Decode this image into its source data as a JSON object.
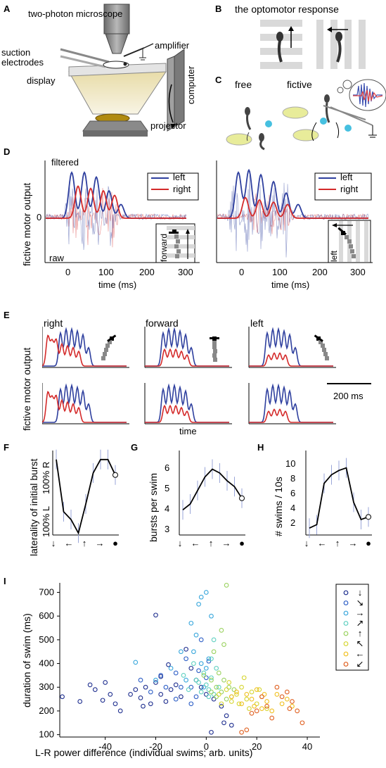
{
  "panels": {
    "A": {
      "letter": "A",
      "labels": {
        "microscope": "two-photon microscope",
        "electrodes": "suction electrodes",
        "amplifier": "amplifier",
        "display": "display",
        "computer": "computer",
        "projector": "projector"
      }
    },
    "B": {
      "letter": "B",
      "title": "the optomotor response"
    },
    "C": {
      "letter": "C",
      "free": "free",
      "fictive": "fictive"
    },
    "D": {
      "letter": "D",
      "ylabel": "fictive motor output",
      "xlabel": "time (ms)",
      "zero": "0",
      "filtered": "filtered",
      "raw": "raw",
      "legend": [
        "left",
        "right"
      ],
      "insets": [
        "forward",
        "left"
      ],
      "xticks": [
        "0",
        "100",
        "200",
        "300"
      ]
    },
    "E": {
      "letter": "E",
      "ylabel": "fictive motor output",
      "xlabel": "time",
      "columns": [
        "right",
        "forward",
        "left"
      ],
      "scalebar": "200 ms"
    },
    "F": {
      "letter": "F",
      "ylabel": "laterality of initial burst",
      "ytick_top": "100% R",
      "ytick_bottom": "100% L"
    },
    "G": {
      "letter": "G",
      "ylabel": "bursts per swim",
      "yticks": [
        "3",
        "4",
        "5",
        "6"
      ]
    },
    "H": {
      "letter": "H",
      "ylabel": "# swims / 10s",
      "yticks": [
        "2",
        "4",
        "6",
        "8",
        "10"
      ]
    },
    "I": {
      "letter": "I",
      "ylabel": "duration of swim (ms)",
      "xlabel": "L-R power difference (individual swims; arb. units)",
      "yticks": [
        "100",
        "200",
        "300",
        "400",
        "500",
        "600",
        "700"
      ],
      "xticks": [
        "-40",
        "-20",
        "0",
        "20",
        "40"
      ],
      "legend_arrows": [
        "↓",
        "↘",
        "→",
        "↗",
        "↑",
        "↖",
        "←",
        "↙"
      ]
    }
  },
  "chart_data": [
    {
      "type": "line",
      "title": "",
      "xlabel": "",
      "ylabel": "laterality of initial burst",
      "categories": [
        "↓",
        "←",
        "↑",
        "→",
        "●"
      ],
      "x": [
        0,
        1,
        2,
        3,
        4,
        5,
        6,
        7,
        8
      ],
      "values": [
        0.95,
        -0.4,
        -0.6,
        -0.95,
        -0.2,
        0.6,
        0.95,
        0.95,
        0.55
      ],
      "ylim": [
        -1,
        1
      ]
    },
    {
      "type": "line",
      "title": "",
      "xlabel": "",
      "ylabel": "bursts per swim",
      "categories": [
        "↓",
        "←",
        "↑",
        "→",
        "●"
      ],
      "x": [
        0,
        1,
        2,
        3,
        4,
        5,
        6,
        7,
        8
      ],
      "values": [
        4.3,
        4.6,
        5.3,
        6.0,
        6.4,
        6.2,
        5.8,
        5.5,
        4.9
      ],
      "ylim": [
        3,
        7
      ]
    },
    {
      "type": "line",
      "title": "",
      "xlabel": "",
      "ylabel": "# swims / 10s",
      "categories": [
        "↓",
        "←",
        "↑",
        "→",
        "●"
      ],
      "x": [
        0,
        1,
        2,
        3,
        4,
        5,
        6,
        7,
        8
      ],
      "values": [
        2.8,
        3.2,
        8.0,
        9.0,
        9.5,
        9.8,
        5.8,
        3.8,
        4.1
      ],
      "ylim": [
        2,
        11
      ]
    },
    {
      "type": "scatter",
      "title": "",
      "xlabel": "L-R power difference (individual swims; arb. units)",
      "ylabel": "duration of swim (ms)",
      "xlim": [
        -58,
        45
      ],
      "ylim": [
        90,
        740
      ],
      "legend_position": "top-right",
      "series": [
        {
          "color": "#1f2f8f",
          "points": [
            [
              -57,
              260
            ],
            [
              -50,
              240
            ],
            [
              -46,
              310
            ],
            [
              -44,
              290
            ],
            [
              -41,
              245
            ],
            [
              -40,
              320
            ],
            [
              -38,
              270
            ],
            [
              -36,
              230
            ],
            [
              -34,
              200
            ],
            [
              -30,
              270
            ],
            [
              -28,
              290
            ],
            [
              -26,
              255
            ],
            [
              -24,
              300
            ],
            [
              -22,
              230
            ],
            [
              -20,
              320
            ],
            [
              -18,
              270
            ],
            [
              -16,
              240
            ],
            [
              -14,
              290
            ],
            [
              -12,
              310
            ],
            [
              -10,
              260
            ],
            [
              -20,
              604
            ],
            [
              -8,
              460
            ],
            [
              -6,
              380
            ],
            [
              -4,
              330
            ],
            [
              -2,
              300
            ],
            [
              0,
              270
            ],
            [
              3,
              250
            ],
            [
              6,
              220
            ],
            [
              8,
              180
            ],
            [
              10,
              140
            ],
            [
              2,
              110
            ],
            [
              7,
              150
            ],
            [
              -15,
              395
            ],
            [
              -18,
              345
            ],
            [
              -25,
              220
            ]
          ]
        },
        {
          "color": "#2e5fc6",
          "points": [
            [
              -26,
              330
            ],
            [
              -22,
              280
            ],
            [
              -18,
              350
            ],
            [
              -12,
              360
            ],
            [
              -10,
              300
            ],
            [
              -8,
              420
            ],
            [
              -6,
              300
            ],
            [
              -4,
              260
            ],
            [
              -2,
              500
            ],
            [
              0,
              340
            ],
            [
              -12,
              250
            ],
            [
              -16,
              300
            ],
            [
              -6,
              230
            ],
            [
              -3,
              370
            ],
            [
              1,
              410
            ]
          ]
        },
        {
          "color": "#39a7dc",
          "points": [
            [
              -28,
              405
            ],
            [
              -20,
              330
            ],
            [
              -14,
              380
            ],
            [
              -10,
              450
            ],
            [
              -6,
              570
            ],
            [
              -4,
              520
            ],
            [
              -2,
              680
            ],
            [
              0,
              700
            ],
            [
              1,
              420
            ],
            [
              -1,
              300
            ],
            [
              -8,
              330
            ],
            [
              2,
              600
            ],
            [
              -3,
              650
            ],
            [
              -5,
              450
            ],
            [
              0,
              380
            ],
            [
              -2,
              400
            ]
          ]
        },
        {
          "color": "#5fd0c0",
          "points": [
            [
              -9,
              350
            ],
            [
              -5,
              400
            ],
            [
              -3,
              320
            ],
            [
              -1,
              360
            ],
            [
              0,
              310
            ],
            [
              1,
              290
            ],
            [
              2,
              340
            ],
            [
              3,
              270
            ],
            [
              4,
              380
            ],
            [
              -7,
              290
            ],
            [
              2,
              420
            ],
            [
              3,
              500
            ],
            [
              -2,
              280
            ],
            [
              5,
              300
            ],
            [
              -4,
              330
            ],
            [
              1,
              260
            ]
          ]
        },
        {
          "color": "#9ad25f",
          "points": [
            [
              -1,
              350
            ],
            [
              2,
              330
            ],
            [
              4,
              300
            ],
            [
              5,
              360
            ],
            [
              6,
              280
            ],
            [
              7,
              330
            ],
            [
              8,
              250
            ],
            [
              9,
              300
            ],
            [
              10,
              260
            ],
            [
              3,
              450
            ],
            [
              6,
              540
            ],
            [
              7,
              480
            ],
            [
              8,
              730
            ],
            [
              11,
              290
            ],
            [
              4,
              260
            ],
            [
              2,
              280
            ]
          ]
        },
        {
          "color": "#d6d632",
          "points": [
            [
              5,
              270
            ],
            [
              8,
              290
            ],
            [
              10,
              240
            ],
            [
              12,
              270
            ],
            [
              14,
              300
            ],
            [
              16,
              250
            ],
            [
              18,
              280
            ],
            [
              20,
              230
            ],
            [
              22,
              260
            ],
            [
              24,
              210
            ],
            [
              9,
              320
            ],
            [
              13,
              230
            ],
            [
              15,
              340
            ],
            [
              17,
              210
            ],
            [
              21,
              290
            ],
            [
              6,
              230
            ]
          ]
        },
        {
          "color": "#f0c020",
          "points": [
            [
              10,
              260
            ],
            [
              14,
              230
            ],
            [
              18,
              250
            ],
            [
              20,
              290
            ],
            [
              22,
              210
            ],
            [
              24,
              240
            ],
            [
              26,
              200
            ],
            [
              28,
              270
            ],
            [
              30,
              230
            ],
            [
              32,
              250
            ],
            [
              34,
              220
            ],
            [
              16,
              270
            ],
            [
              12,
              280
            ],
            [
              19,
              220
            ],
            [
              23,
              270
            ]
          ]
        },
        {
          "color": "#e06020",
          "points": [
            [
              14,
              110
            ],
            [
              16,
              120
            ],
            [
              20,
              200
            ],
            [
              24,
              220
            ],
            [
              28,
              300
            ],
            [
              30,
              260
            ],
            [
              32,
              280
            ],
            [
              34,
              240
            ],
            [
              36,
              200
            ],
            [
              38,
              150
            ],
            [
              22,
              260
            ],
            [
              26,
              170
            ],
            [
              18,
              190
            ],
            [
              33,
              210
            ]
          ]
        }
      ]
    }
  ],
  "colors": {
    "left": "#2e3f9e",
    "right": "#d42a2a",
    "gray": "#888888",
    "errorbar": "#9aa6d8",
    "stripe": "#d9d9d9"
  }
}
